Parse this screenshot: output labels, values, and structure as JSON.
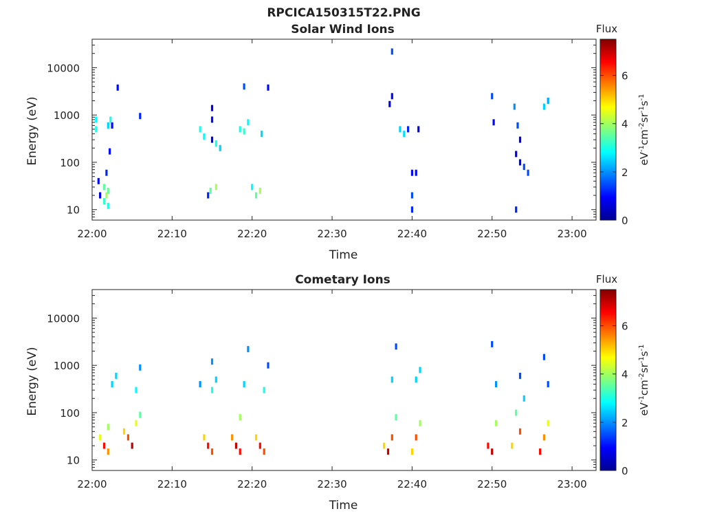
{
  "figure": {
    "title": "RPCICA150315T22.PNG"
  },
  "colorbar": {
    "label": "Flux",
    "unit_label": "eV-1cm-2sr-1s-1",
    "unit_parts": [
      {
        "t": "eV",
        "sup": false
      },
      {
        "t": "-1",
        "sup": true
      },
      {
        "t": "cm",
        "sup": false
      },
      {
        "t": "-2",
        "sup": true
      },
      {
        "t": "sr",
        "sup": false
      },
      {
        "t": "-1",
        "sup": true
      },
      {
        "t": "s",
        "sup": false
      },
      {
        "t": "-1",
        "sup": true
      }
    ],
    "range": [
      0,
      7.5
    ],
    "ticks": [
      0,
      2,
      4,
      6
    ],
    "colormap": [
      "#00008f",
      "#0000ff",
      "#0080ff",
      "#00ffff",
      "#80ff80",
      "#ffff00",
      "#ff8000",
      "#ff0000",
      "#800000"
    ]
  },
  "chart_data": [
    {
      "type": "heatmap",
      "title": "Solar Wind Ions",
      "xlabel": "Time",
      "ylabel": "Energy (eV)",
      "xlim": [
        "22:00",
        "23:03"
      ],
      "xticks": [
        "22:00",
        "22:10",
        "22:20",
        "22:30",
        "22:40",
        "22:50",
        "23:00"
      ],
      "ylim": [
        6,
        40000
      ],
      "yscale": "log",
      "yticks": [
        10,
        100,
        1000,
        10000
      ],
      "ytick_labels": [
        "10",
        "100",
        "1000",
        "10000"
      ],
      "cells": [
        [
          "22:00.5",
          800,
          2.8
        ],
        [
          "22:00.5",
          500,
          3.0
        ],
        [
          "22:00.8",
          40,
          1.0
        ],
        [
          "22:01.0",
          20,
          0.8
        ],
        [
          "22:01.5",
          30,
          3.5
        ],
        [
          "22:01.5",
          15,
          3.2
        ],
        [
          "22:01.8",
          20,
          4.0
        ],
        [
          "22:02.0",
          25,
          3.6
        ],
        [
          "22:02.0",
          12,
          3.0
        ],
        [
          "22:01.8",
          60,
          1.2
        ],
        [
          "22:02.0",
          600,
          2.5
        ],
        [
          "22:02.3",
          800,
          3.0
        ],
        [
          "22:02.5",
          600,
          1.0
        ],
        [
          "22:02.2",
          170,
          1.0
        ],
        [
          "22:03.2",
          3800,
          1.0
        ],
        [
          "22:06.0",
          950,
          1.2
        ],
        [
          "22:13.5",
          500,
          3.0
        ],
        [
          "22:14.0",
          350,
          2.8
        ],
        [
          "22:14.5",
          20,
          1.2
        ],
        [
          "22:14.8",
          25,
          3.5
        ],
        [
          "22:15.0",
          800,
          1.0
        ],
        [
          "22:15.0",
          1400,
          0.8
        ],
        [
          "22:15.0",
          300,
          0.8
        ],
        [
          "22:15.5",
          250,
          3.0
        ],
        [
          "22:15.5",
          30,
          4.0
        ],
        [
          "22:16.0",
          200,
          2.5
        ],
        [
          "22:18.5",
          500,
          3.0
        ],
        [
          "22:19.0",
          450,
          3.2
        ],
        [
          "22:19.5",
          700,
          2.8
        ],
        [
          "22:19.0",
          4000,
          1.5
        ],
        [
          "22:20.0",
          30,
          2.8
        ],
        [
          "22:20.5",
          20,
          3.5
        ],
        [
          "22:21.0",
          25,
          4.0
        ],
        [
          "22:21.2",
          400,
          2.5
        ],
        [
          "22:22.0",
          3800,
          1.0
        ],
        [
          "22:37.2",
          1700,
          0.8
        ],
        [
          "22:37.5",
          2500,
          1.0
        ],
        [
          "22:37.5",
          22000,
          1.5
        ],
        [
          "22:38.5",
          500,
          2.5
        ],
        [
          "22:39.0",
          400,
          2.6
        ],
        [
          "22:39.5",
          500,
          1.2
        ],
        [
          "22:40.0",
          60,
          1.0
        ],
        [
          "22:40.0",
          20,
          1.5
        ],
        [
          "22:40.0",
          10,
          1.2
        ],
        [
          "22:40.8",
          500,
          0.8
        ],
        [
          "22:40.5",
          60,
          1.0
        ],
        [
          "22:50.0",
          2500,
          1.5
        ],
        [
          "22:50.2",
          700,
          1.0
        ],
        [
          "22:52.8",
          1500,
          2.0
        ],
        [
          "22:53.0",
          150,
          0.8
        ],
        [
          "22:53.0",
          10,
          1.2
        ],
        [
          "22:53.2",
          600,
          1.5
        ],
        [
          "22:53.5",
          300,
          0.8
        ],
        [
          "22:53.5",
          100,
          0.9
        ],
        [
          "22:54.0",
          80,
          1.5
        ],
        [
          "22:54.5",
          60,
          1.5
        ],
        [
          "22:56.5",
          1500,
          2.5
        ],
        [
          "22:57.0",
          2000,
          2.2
        ]
      ]
    },
    {
      "type": "heatmap",
      "title": "Cometary Ions",
      "xlabel": "Time",
      "ylabel": "Energy (eV)",
      "xlim": [
        "22:00",
        "23:03"
      ],
      "xticks": [
        "22:00",
        "22:10",
        "22:20",
        "22:30",
        "22:40",
        "22:50",
        "23:00"
      ],
      "ylim": [
        6,
        40000
      ],
      "yscale": "log",
      "yticks": [
        10,
        100,
        1000,
        10000
      ],
      "ytick_labels": [
        "10",
        "100",
        "1000",
        "10000"
      ],
      "cells": [
        [
          "22:01.0",
          30,
          4.5
        ],
        [
          "22:01.5",
          20,
          6.5
        ],
        [
          "22:02.0",
          15,
          5.5
        ],
        [
          "22:02.0",
          50,
          4.0
        ],
        [
          "22:02.5",
          400,
          2.5
        ],
        [
          "22:03.0",
          600,
          2.5
        ],
        [
          "22:04.0",
          40,
          5.0
        ],
        [
          "22:04.5",
          30,
          6.0
        ],
        [
          "22:05.0",
          20,
          7.0
        ],
        [
          "22:05.5",
          60,
          4.5
        ],
        [
          "22:06.0",
          90,
          3.5
        ],
        [
          "22:06.0",
          900,
          2.0
        ],
        [
          "22:05.5",
          300,
          2.8
        ],
        [
          "22:13.5",
          400,
          2.0
        ],
        [
          "22:14.0",
          30,
          5.0
        ],
        [
          "22:14.5",
          20,
          6.5
        ],
        [
          "22:15.0",
          15,
          6.0
        ],
        [
          "22:15.0",
          300,
          3.0
        ],
        [
          "22:15.0",
          1200,
          2.0
        ],
        [
          "22:15.5",
          500,
          2.5
        ],
        [
          "22:17.5",
          30,
          5.5
        ],
        [
          "22:18.0",
          20,
          7.0
        ],
        [
          "22:18.5",
          15,
          6.5
        ],
        [
          "22:18.5",
          80,
          4.0
        ],
        [
          "22:19.0",
          400,
          2.5
        ],
        [
          "22:19.5",
          2200,
          2.0
        ],
        [
          "22:20.5",
          30,
          5.0
        ],
        [
          "22:21.0",
          20,
          6.5
        ],
        [
          "22:21.5",
          15,
          6.0
        ],
        [
          "22:21.5",
          300,
          3.0
        ],
        [
          "22:22.0",
          1000,
          1.5
        ],
        [
          "22:36.5",
          20,
          5.0
        ],
        [
          "22:37.0",
          15,
          7.0
        ],
        [
          "22:37.5",
          30,
          6.0
        ],
        [
          "22:37.5",
          500,
          2.5
        ],
        [
          "22:38.0",
          2500,
          1.5
        ],
        [
          "22:38.0",
          80,
          3.5
        ],
        [
          "22:40.0",
          15,
          5.0
        ],
        [
          "22:40.5",
          30,
          6.0
        ],
        [
          "22:41.0",
          60,
          4.0
        ],
        [
          "22:40.5",
          500,
          2.5
        ],
        [
          "22:41.0",
          800,
          2.5
        ],
        [
          "22:49.5",
          20,
          6.5
        ],
        [
          "22:50.0",
          15,
          7.0
        ],
        [
          "22:50.5",
          60,
          4.0
        ],
        [
          "22:50.5",
          400,
          2.0
        ],
        [
          "22:50.0",
          2800,
          1.5
        ],
        [
          "22:52.5",
          20,
          5.0
        ],
        [
          "22:53.0",
          100,
          3.5
        ],
        [
          "22:53.5",
          40,
          6.0
        ],
        [
          "22:53.5",
          600,
          1.5
        ],
        [
          "22:54.0",
          200,
          2.5
        ],
        [
          "22:56.0",
          15,
          6.5
        ],
        [
          "22:56.5",
          30,
          5.5
        ],
        [
          "22:57.0",
          60,
          4.5
        ],
        [
          "22:57.0",
          400,
          1.5
        ],
        [
          "22:56.5",
          1500,
          1.5
        ]
      ]
    }
  ]
}
